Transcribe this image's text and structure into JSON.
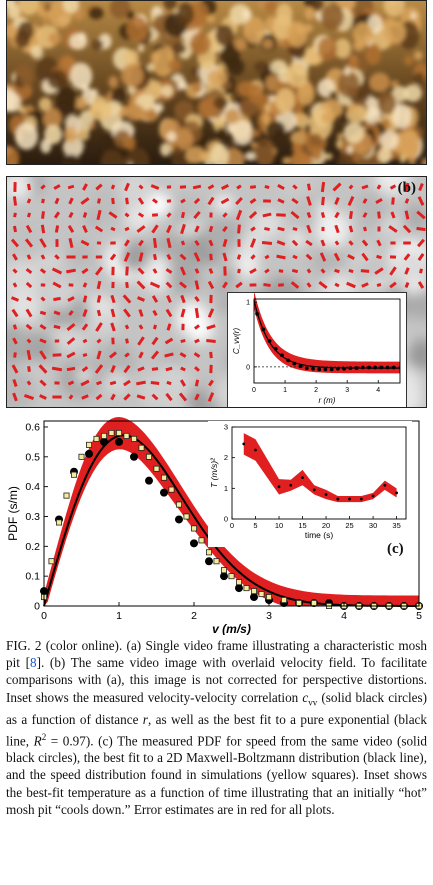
{
  "panel_b": {
    "label": "(b)",
    "inset": {
      "type": "scatter",
      "ylabel": "C_vv(r)",
      "xlabel": "r (m)",
      "xlim": [
        0,
        4.7
      ],
      "ylim": [
        -0.25,
        1.05
      ],
      "xticks": [
        0,
        1,
        2,
        3,
        4
      ],
      "yticks": [
        0,
        1
      ],
      "points_x": [
        0.1,
        0.3,
        0.5,
        0.7,
        0.9,
        1.1,
        1.3,
        1.5,
        1.7,
        1.9,
        2.1,
        2.3,
        2.5,
        2.7,
        2.9,
        3.1,
        3.3,
        3.5,
        3.7,
        3.9,
        4.1,
        4.3,
        4.5
      ],
      "points_y": [
        0.82,
        0.58,
        0.4,
        0.28,
        0.18,
        0.1,
        0.05,
        0.01,
        -0.02,
        -0.03,
        -0.04,
        -0.04,
        -0.04,
        -0.03,
        -0.03,
        -0.02,
        -0.02,
        -0.01,
        -0.01,
        -0.01,
        -0.01,
        -0.01,
        -0.01
      ]
    }
  },
  "chart_data": [
    {
      "type": "line",
      "panel": "(c)",
      "xlabel": "v (m/s)",
      "ylabel": "PDF (s/m)",
      "xlim": [
        0,
        5
      ],
      "ylim": [
        0,
        0.62
      ],
      "xticks": [
        0,
        1,
        2,
        3,
        4,
        5
      ],
      "yticks": [
        0,
        0.1,
        0.2,
        0.3,
        0.4,
        0.5,
        0.6
      ],
      "ytick_labels": [
        "0",
        "0.1",
        "0.2",
        "0.3",
        "0.4",
        "0.5",
        "0.6"
      ],
      "measured_x": [
        0,
        0.2,
        0.4,
        0.6,
        0.8,
        1.0,
        1.2,
        1.4,
        1.6,
        1.8,
        2.0,
        2.2,
        2.4,
        2.6,
        2.8,
        3.0,
        3.2,
        3.4,
        3.6,
        3.8,
        4.0,
        4.2,
        4.4,
        4.6,
        4.8,
        5.0
      ],
      "measured_y": [
        0.05,
        0.29,
        0.45,
        0.51,
        0.55,
        0.55,
        0.5,
        0.42,
        0.38,
        0.29,
        0.21,
        0.15,
        0.1,
        0.06,
        0.03,
        0.02,
        0.01,
        0.01,
        0.01,
        0.01,
        0.0,
        0.0,
        0.0,
        0.0,
        0.0,
        0.0
      ],
      "simulation_x": [
        0,
        0.1,
        0.2,
        0.3,
        0.4,
        0.5,
        0.6,
        0.7,
        0.8,
        0.9,
        1.0,
        1.1,
        1.2,
        1.3,
        1.4,
        1.5,
        1.6,
        1.7,
        1.8,
        1.9,
        2.0,
        2.1,
        2.2,
        2.3,
        2.4,
        2.5,
        2.6,
        2.7,
        2.8,
        2.9,
        3.0,
        3.2,
        3.4,
        3.6,
        3.8,
        4.0,
        4.2,
        4.4,
        4.6,
        4.8,
        5.0
      ],
      "simulation_y": [
        0.03,
        0.15,
        0.28,
        0.37,
        0.44,
        0.5,
        0.54,
        0.56,
        0.57,
        0.58,
        0.58,
        0.57,
        0.56,
        0.53,
        0.5,
        0.46,
        0.43,
        0.39,
        0.34,
        0.3,
        0.26,
        0.22,
        0.18,
        0.15,
        0.12,
        0.1,
        0.08,
        0.06,
        0.05,
        0.04,
        0.03,
        0.02,
        0.01,
        0.01,
        0.0,
        0.0,
        0.0,
        0.0,
        0.0,
        0.0,
        0.0
      ],
      "fit_sigma": 1.06,
      "fit_amp": 1.0
    },
    {
      "type": "line",
      "panel": "(c) inset",
      "xlabel": "time (s)",
      "ylabel": "T (m/s)²",
      "xlim": [
        0,
        37
      ],
      "ylim": [
        0,
        3
      ],
      "xticks": [
        0,
        5,
        10,
        15,
        20,
        25,
        30,
        35
      ],
      "yticks": [
        0,
        1,
        2,
        3
      ],
      "x": [
        2.5,
        5,
        10,
        12.5,
        15,
        17.5,
        20,
        22.5,
        25,
        27.5,
        30,
        32.5,
        35
      ],
      "y": [
        2.45,
        2.25,
        1.05,
        1.1,
        1.35,
        0.95,
        0.8,
        0.65,
        0.65,
        0.65,
        0.75,
        1.1,
        0.85
      ],
      "err": [
        0.35,
        0.35,
        0.25,
        0.18,
        0.25,
        0.15,
        0.15,
        0.1,
        0.1,
        0.1,
        0.1,
        0.15,
        0.15
      ]
    }
  ],
  "panel_c": {
    "label": "(c)"
  },
  "caption": {
    "fig": "FIG. 2",
    "t1": " (color online).  (a) Single video frame illustrating a characteristic mosh pit [",
    "ref": "8",
    "t2": "]. (b) The same video image with overlaid velocity field. To facilitate comparisons with (a), this image is not corrected for perspective distortions. Inset shows the measured velocity-velocity correlation ",
    "cvv": "c",
    "cvv_sub": "vv",
    "t3": " (solid black circles) as a function of distance ",
    "r": "r",
    "t4": ", as well as the best fit to a pure exponential (black line, ",
    "R": "R",
    "R_sup": "2",
    "t5": " = 0.97). (c) The measured PDF for speed from the same video (solid black circles), the best fit to a 2D Maxwell-Boltzmann distribution (black line), and the speed distribution found in simulations (yellow squares). Inset shows the best-fit temperature as a function of time illustrating that an initially “hot” mosh pit “cools down.” Error estimates are in red for all plots."
  }
}
